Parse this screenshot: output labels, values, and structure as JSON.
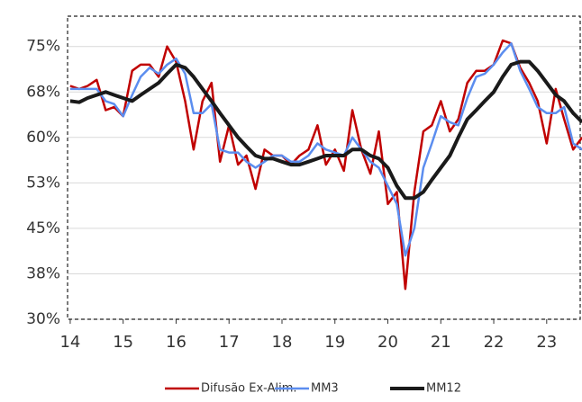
{
  "chart_data": {
    "type": "line",
    "x": [
      14,
      14.17,
      14.33,
      14.5,
      14.67,
      14.83,
      15,
      15.17,
      15.33,
      15.5,
      15.67,
      15.83,
      16,
      16.17,
      16.33,
      16.5,
      16.67,
      16.83,
      17,
      17.17,
      17.33,
      17.5,
      17.67,
      17.83,
      18,
      18.17,
      18.33,
      18.5,
      18.67,
      18.83,
      19,
      19.17,
      19.33,
      19.5,
      19.67,
      19.83,
      20,
      20.17,
      20.33,
      20.5,
      20.67,
      20.83,
      21,
      21.17,
      21.33,
      21.5,
      21.67,
      21.83,
      22,
      22.17,
      22.33,
      22.5,
      22.67,
      22.83,
      23,
      23.17,
      23.33,
      23.5,
      23.67
    ],
    "series": [
      {
        "name": "Difusão Ex-Alim.",
        "color": "#c00000",
        "width": 2.5,
        "values": [
          68.5,
          68,
          68.5,
          69.5,
          64.5,
          65,
          63.5,
          71,
          72,
          72,
          70,
          75,
          72.5,
          66,
          58,
          66,
          69,
          56,
          62,
          55.5,
          57,
          51.5,
          58,
          57,
          57,
          55.5,
          57,
          58,
          62,
          55.5,
          58,
          54.5,
          64.5,
          58,
          54,
          61,
          49,
          51,
          35,
          51,
          61,
          62,
          66,
          61,
          63,
          69,
          71,
          71,
          72,
          76,
          75.5,
          71.5,
          69,
          66,
          59,
          68,
          63,
          58,
          60
        ]
      },
      {
        "name": "MM3",
        "color": "#5b8def",
        "width": 2.5,
        "values": [
          68,
          68,
          68,
          68,
          66,
          65.5,
          63.5,
          67,
          70,
          71.5,
          70.5,
          72,
          73,
          70.5,
          64,
          64,
          65.5,
          58,
          57.5,
          57.5,
          56,
          55,
          56,
          57,
          57,
          56,
          56,
          57,
          59,
          58,
          57.5,
          57,
          60,
          58,
          56,
          55,
          52,
          49,
          40.5,
          45,
          55,
          59,
          63.5,
          62.5,
          62,
          66.5,
          70,
          70.5,
          72,
          74,
          75.5,
          71,
          68,
          65,
          64,
          64,
          65,
          59,
          58
        ]
      },
      {
        "name": "MM12",
        "color": "#1a1a1a",
        "width": 4,
        "values": [
          66,
          65.8,
          66.5,
          67,
          67.5,
          67,
          66.5,
          66,
          67,
          68,
          69,
          70.5,
          72,
          71.5,
          70,
          68,
          66,
          64,
          62,
          60,
          58.5,
          57,
          56.5,
          56.5,
          56,
          55.5,
          55.5,
          56,
          56.5,
          57,
          57,
          57,
          58,
          58,
          57,
          56.5,
          55,
          52,
          50,
          50,
          51,
          53,
          55,
          57,
          60,
          63,
          64.5,
          66,
          67.5,
          70,
          72,
          72.5,
          72.5,
          71,
          69,
          67,
          66,
          64,
          62.5
        ]
      }
    ],
    "xlim": [
      13.95,
      23.65
    ],
    "xticks": [
      14,
      15,
      16,
      17,
      18,
      19,
      20,
      21,
      22,
      23
    ],
    "ylim": [
      30,
      80
    ],
    "yticks": [
      {
        "value": 30,
        "label": "30%"
      },
      {
        "value": 37.5,
        "label": "38%"
      },
      {
        "value": 45,
        "label": "45%"
      },
      {
        "value": 52.5,
        "label": "53%"
      },
      {
        "value": 60,
        "label": "60%"
      },
      {
        "value": 67.5,
        "label": "68%"
      },
      {
        "value": 75,
        "label": "75%"
      }
    ],
    "grid": true,
    "legend": "bottom"
  }
}
